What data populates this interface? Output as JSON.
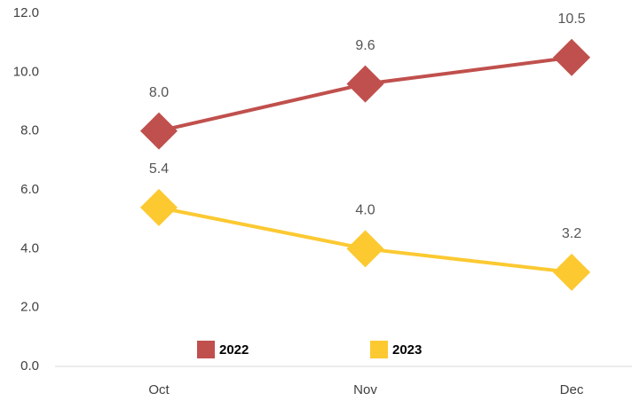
{
  "chart_data": {
    "type": "line",
    "categories": [
      "Oct",
      "Nov",
      "Dec"
    ],
    "series": [
      {
        "name": "2022",
        "color": "#c0504d",
        "values": [
          8.0,
          9.6,
          10.5
        ],
        "value_labels": [
          "8.0",
          "9.6",
          "10.5"
        ]
      },
      {
        "name": "2023",
        "color": "#fcc931",
        "values": [
          5.4,
          4.0,
          3.2
        ],
        "value_labels": [
          "5.4",
          "4.0",
          "3.2"
        ]
      }
    ],
    "ylim": [
      0,
      12
    ],
    "yticks": [
      {
        "value": 0,
        "label": "0.0"
      },
      {
        "value": 2,
        "label": "2.0"
      },
      {
        "value": 4,
        "label": "4.0"
      },
      {
        "value": 6,
        "label": "6.0"
      },
      {
        "value": 8,
        "label": "8.0"
      },
      {
        "value": 10,
        "label": "10.0"
      },
      {
        "value": 12,
        "label": "12.0"
      }
    ],
    "grid": false,
    "legend": "bottom"
  }
}
